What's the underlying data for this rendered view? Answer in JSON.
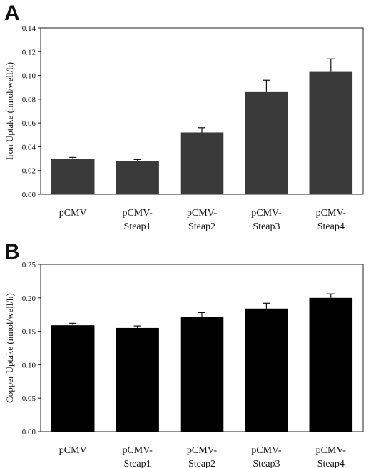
{
  "chart_data": [
    {
      "panel": "A",
      "type": "bar",
      "categories": [
        [
          "pCMV"
        ],
        [
          "pCMV-",
          "Steap1"
        ],
        [
          "pCMV-",
          "Steap2"
        ],
        [
          "pCMV-",
          "Steap3"
        ],
        [
          "pCMV-",
          "Steap4"
        ]
      ],
      "values": [
        0.03,
        0.028,
        0.052,
        0.086,
        0.103
      ],
      "errors": [
        0.001,
        0.0012,
        0.004,
        0.01,
        0.011
      ],
      "ylabel": "Iron Uptake (nmol/well/h)",
      "ylim": [
        0,
        0.14
      ],
      "yticks": [
        "0.00",
        "0.02",
        "0.04",
        "0.06",
        "0.08",
        "0.10",
        "0.12",
        "0.14"
      ],
      "bar_color": "#3a3a3a",
      "grid": false
    },
    {
      "panel": "B",
      "type": "bar",
      "categories": [
        [
          "pCMV"
        ],
        [
          "pCMV-",
          "Steap1"
        ],
        [
          "pCMV-",
          "Steap2"
        ],
        [
          "pCMV-",
          "Steap3"
        ],
        [
          "pCMV-",
          "Steap4"
        ]
      ],
      "values": [
        0.159,
        0.155,
        0.172,
        0.184,
        0.2
      ],
      "errors": [
        0.003,
        0.003,
        0.006,
        0.008,
        0.006
      ],
      "ylabel": "Copper Uptake (nmol/well/h)",
      "ylim": [
        0,
        0.25
      ],
      "yticks": [
        "0.00",
        "0.05",
        "0.10",
        "0.15",
        "0.20",
        "0.25"
      ],
      "bar_color": "#000000",
      "grid": false
    }
  ]
}
